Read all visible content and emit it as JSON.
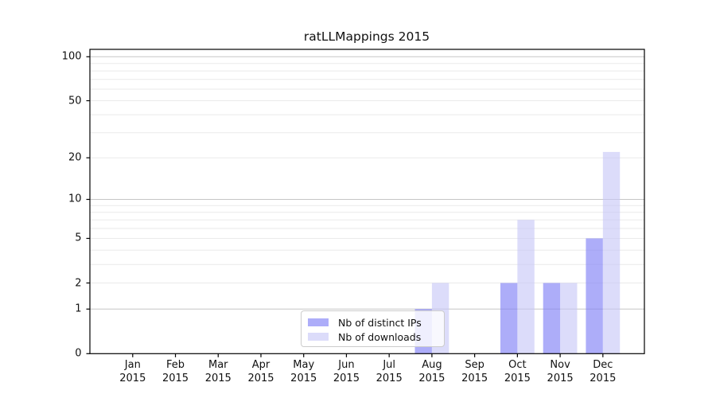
{
  "title": "ratLLMappings 2015",
  "chart_data": {
    "type": "bar",
    "title": "ratLLMappings 2015",
    "categories": [
      "Jan",
      "Feb",
      "Mar",
      "Apr",
      "May",
      "Jun",
      "Jul",
      "Aug",
      "Sep",
      "Oct",
      "Nov",
      "Dec"
    ],
    "category_year": "2015",
    "series": [
      {
        "name": "Nb of distinct IPs",
        "color": "rgba(130,130,246,0.66)",
        "values": [
          0,
          0,
          0,
          0,
          0,
          0,
          0,
          1,
          0,
          2,
          2,
          5
        ]
      },
      {
        "name": "Nb of downloads",
        "color": "rgba(198,198,247,0.62)",
        "values": [
          0,
          0,
          0,
          0,
          0,
          0,
          0,
          2,
          0,
          7,
          2,
          22
        ]
      }
    ],
    "xlabel": "",
    "ylabel": "",
    "y_scale": "log1p",
    "ylim": [
      0,
      112
    ],
    "y_tick_values": [
      0,
      1,
      2,
      5,
      10,
      20,
      50,
      100
    ],
    "y_major_gridlines": [
      1,
      10,
      100
    ],
    "y_minor_gridlines": [
      2,
      3,
      4,
      5,
      6,
      7,
      8,
      9,
      20,
      30,
      40,
      50,
      60,
      70,
      80,
      90
    ],
    "grid": true,
    "legend_position": "lower center",
    "colors": {
      "major_grid": "#c6c6c6",
      "minor_grid": "#eaeaea",
      "spine": "#000000",
      "tick": "#000000",
      "text": "#111111"
    }
  }
}
